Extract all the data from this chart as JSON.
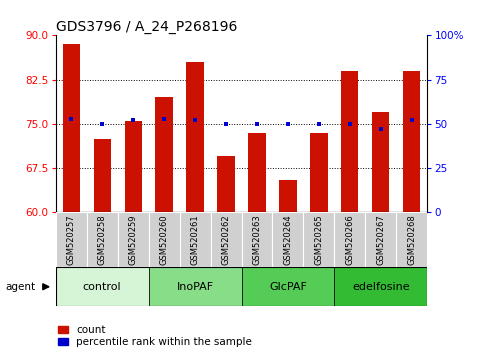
{
  "title": "GDS3796 / A_24_P268196",
  "samples": [
    "GSM520257",
    "GSM520258",
    "GSM520259",
    "GSM520260",
    "GSM520261",
    "GSM520262",
    "GSM520263",
    "GSM520264",
    "GSM520265",
    "GSM520266",
    "GSM520267",
    "GSM520268"
  ],
  "count_values": [
    88.5,
    72.5,
    75.5,
    79.5,
    85.5,
    69.5,
    73.5,
    65.5,
    73.5,
    84.0,
    77.0,
    84.0
  ],
  "percentile_values": [
    53,
    50,
    52,
    53,
    52,
    50,
    50,
    50,
    50,
    50,
    47,
    52
  ],
  "groups": [
    {
      "label": "control",
      "start": 0,
      "end": 3,
      "color": "#d6f5d6"
    },
    {
      "label": "InoPAF",
      "start": 3,
      "end": 6,
      "color": "#88dd88"
    },
    {
      "label": "GlcPAF",
      "start": 6,
      "end": 9,
      "color": "#55cc55"
    },
    {
      "label": "edelfosine",
      "start": 9,
      "end": 12,
      "color": "#33bb33"
    }
  ],
  "ylim_left": [
    60,
    90
  ],
  "ylim_right": [
    0,
    100
  ],
  "yticks_left": [
    60,
    67.5,
    75,
    82.5,
    90
  ],
  "yticks_right": [
    0,
    25,
    50,
    75,
    100
  ],
  "ytick_labels_right": [
    "0",
    "25",
    "50",
    "75",
    "100%"
  ],
  "bar_color": "#cc1100",
  "dot_color": "#0000cc",
  "bar_width": 0.55,
  "background_color": "#ffffff",
  "title_fontsize": 10,
  "tick_fontsize": 7.5,
  "label_fontsize": 7.5,
  "sample_fontsize": 6,
  "group_fontsize": 8
}
